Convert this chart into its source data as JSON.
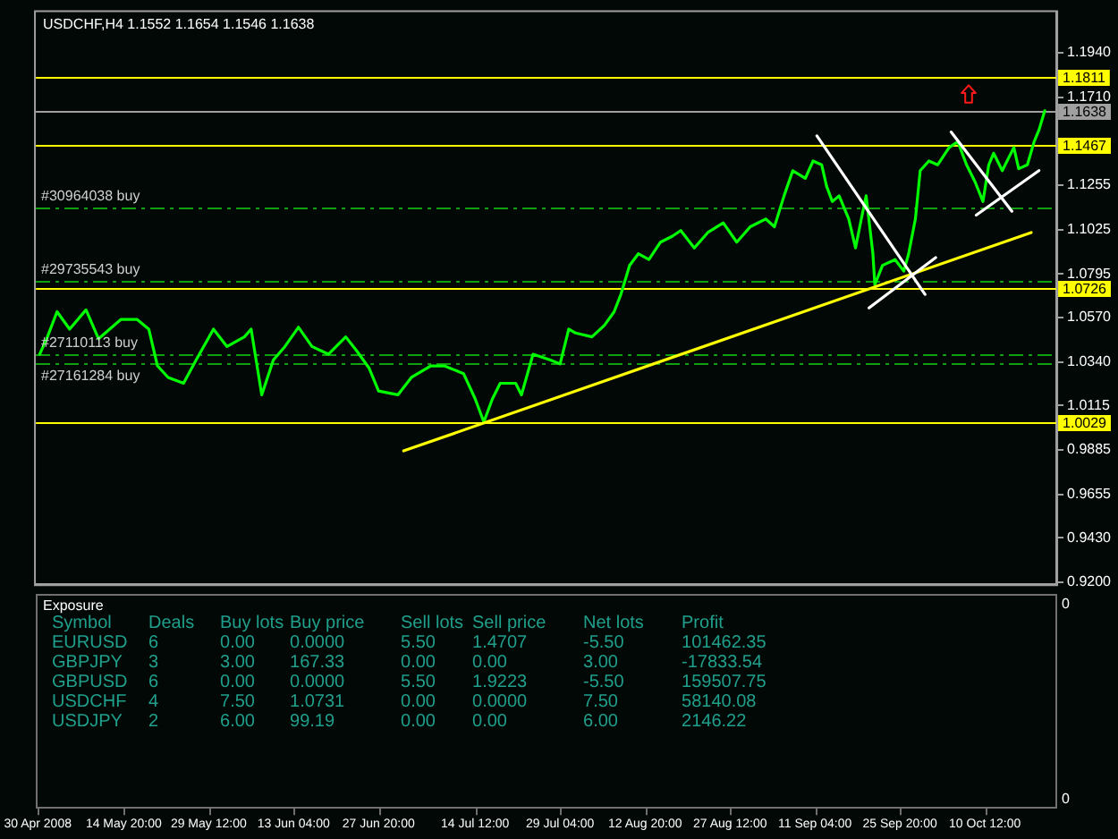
{
  "chart_data": [
    {
      "type": "line",
      "title": "USDCHF,H4 1.1552 1.1654 1.1546 1.1638",
      "x": [
        "2008-04-30T08:00",
        "2008-05-01T16:00",
        "2008-05-03T08:00",
        "2008-05-05T12:00",
        "2008-05-08T08:00",
        "2008-05-10T12:00",
        "2008-05-14T08:00",
        "2008-05-17T04:00",
        "2008-05-19T04:00",
        "2008-05-20T16:00",
        "2008-05-22T12:00",
        "2008-05-25T04:00",
        "2008-05-27T08:00",
        "2008-05-30T08:00",
        "2008-06-01T16:00",
        "2008-06-04T16:00",
        "2008-06-05T20:00",
        "2008-06-07T16:00",
        "2008-06-09T16:00",
        "2008-06-11T16:00",
        "2008-06-14T00:00",
        "2008-06-16T08:00",
        "2008-06-19T04:00",
        "2008-06-22T04:00",
        "2008-06-24T00:00",
        "2008-06-26T04:00",
        "2008-06-27T20:00",
        "2008-07-01T04:00",
        "2008-07-03T12:00",
        "2008-07-06T20:00",
        "2008-07-09T04:00",
        "2008-07-12T12:00",
        "2008-07-14T12:00",
        "2008-07-16T00:00",
        "2008-07-17T12:00",
        "2008-07-18T20:00",
        "2008-07-21T12:00",
        "2008-07-22T12:00",
        "2008-07-24T12:00",
        "2008-07-27T12:00",
        "2008-07-29T04:00",
        "2008-07-30T16:00",
        "2008-07-31T20:00",
        "2008-08-03T16:00",
        "2008-08-05T20:00",
        "2008-08-07T12:00",
        "2008-08-08T16:00",
        "2008-08-10T04:00",
        "2008-08-11T16:00",
        "2008-08-13T12:00",
        "2008-08-15T12:00",
        "2008-08-17T12:00",
        "2008-08-19T00:00",
        "2008-08-21T08:00",
        "2008-08-23T16:00",
        "2008-08-26T08:00",
        "2008-08-28T16:00",
        "2008-08-31T00:00",
        "2008-09-02T16:00",
        "2008-09-04T04:00",
        "2008-09-05T20:00",
        "2008-09-07T08:00",
        "2008-09-09T12:00",
        "2008-09-10T20:00",
        "2008-09-12T08:00",
        "2008-09-13T04:00",
        "2008-09-14T04:00",
        "2008-09-15T08:00",
        "2008-09-17T00:00",
        "2008-09-18T04:00",
        "2008-09-19T04:00",
        "2008-09-20T00:00",
        "2008-09-21T04:00",
        "2008-09-21T12:00",
        "2008-09-22T20:00",
        "2008-09-25T00:00",
        "2008-09-26T12:00",
        "2008-09-27T08:00",
        "2008-09-28T12:00",
        "2008-09-29T08:00",
        "2008-09-30T20:00",
        "2008-10-02T08:00",
        "2008-10-04T08:00",
        "2008-10-05T20:00",
        "2008-10-07T08:00",
        "2008-10-08T20:00",
        "2008-10-10T04:00",
        "2008-10-11T04:00",
        "2008-10-12T00:00",
        "2008-10-13T12:00",
        "2008-10-15T12:00",
        "2008-10-16T08:00",
        "2008-10-17T20:00",
        "2008-10-19T00:00",
        "2008-10-19T20:00",
        "2008-10-20T20:00"
      ],
      "series": [
        {
          "axis": "y2",
          "color": "#00ff00",
          "values": [
            1.038,
            1.047,
            1.06,
            1.051,
            1.061,
            1.046,
            1.056,
            1.056,
            1.051,
            1.032,
            1.026,
            1.023,
            1.035,
            1.051,
            1.042,
            1.047,
            1.051,
            1.017,
            1.035,
            1.042,
            1.052,
            1.042,
            1.038,
            1.047,
            1.04,
            1.031,
            1.019,
            1.017,
            1.026,
            1.032,
            1.032,
            1.028,
            1.015,
            1.003,
            1.015,
            1.023,
            1.023,
            1.017,
            1.038,
            1.035,
            1.033,
            1.051,
            1.049,
            1.047,
            1.053,
            1.06,
            1.069,
            1.084,
            1.09,
            1.087,
            1.096,
            1.099,
            1.102,
            1.093,
            1.101,
            1.106,
            1.096,
            1.104,
            1.108,
            1.104,
            1.12,
            1.133,
            1.129,
            1.138,
            1.136,
            1.125,
            1.117,
            1.12,
            1.108,
            1.093,
            1.108,
            1.12,
            1.09,
            1.074,
            1.084,
            1.087,
            1.081,
            1.09,
            1.108,
            1.133,
            1.138,
            1.136,
            1.145,
            1.148,
            1.136,
            1.127,
            1.117,
            1.136,
            1.142,
            1.133,
            1.145,
            1.134,
            1.136,
            1.148,
            1.154,
            1.164
          ]
        },
        {
          "type": "line",
          "axis": "y2",
          "color": "#ffff00",
          "x": [
            "2008-07-02T04:00",
            "2008-10-18T12:00"
          ],
          "values": [
            0.988,
            1.101
          ]
        },
        {
          "type": "line",
          "axis": "y2",
          "color": "#ffffff",
          "x": [
            "2008-09-11T12:00",
            "2008-09-30T04:00"
          ],
          "values": [
            1.151,
            1.069
          ]
        },
        {
          "type": "line",
          "axis": "y2",
          "color": "#ffffff",
          "x": [
            "2008-09-20T12:00",
            "2008-10-02T00:00"
          ],
          "values": [
            1.062,
            1.088
          ]
        },
        {
          "type": "line",
          "axis": "y2",
          "color": "#ffffff",
          "x": [
            "2008-10-04T16:00",
            "2008-10-15T04:00"
          ],
          "values": [
            1.153,
            1.112
          ]
        },
        {
          "type": "line",
          "axis": "y2",
          "color": "#ffffff",
          "x": [
            "2008-10-09T00:00",
            "2008-10-19T20:00"
          ],
          "values": [
            1.11,
            1.133
          ]
        }
      ],
      "xlim": [
        "2008-04-29T16:00",
        "2008-10-22T20:00"
      ],
      "xticks": [
        {
          "value": "2008-04-30",
          "label": "30 Apr 2008"
        },
        {
          "value": "2008-05-14T20:00",
          "label": "14 May 20:00"
        },
        {
          "value": "2008-05-29T12:00",
          "label": "29 May 12:00"
        },
        {
          "value": "2008-06-13T04:00",
          "label": "13 Jun 04:00"
        },
        {
          "value": "2008-06-27T20:00",
          "label": "27 Jun 20:00"
        },
        {
          "value": "2008-07-14T12:00",
          "label": "14 Jul 12:00"
        },
        {
          "value": "2008-07-29T04:00",
          "label": "29 Jul 04:00"
        },
        {
          "value": "2008-08-12T20:00",
          "label": "12 Aug 20:00"
        },
        {
          "value": "2008-08-27T12:00",
          "label": "27 Aug 12:00"
        },
        {
          "value": "2008-09-11T04:00",
          "label": "11 Sep 04:00"
        },
        {
          "value": "2008-09-25T20:00",
          "label": "25 Sep 20:00"
        },
        {
          "value": "2008-10-10T12:00",
          "label": "10 Oct 12:00"
        }
      ],
      "y2lim": [
        0.919,
        1.215
      ],
      "y2ticks": [
        {
          "value": 0.92,
          "label": "0.9200"
        },
        {
          "value": 0.943,
          "label": "0.9430"
        },
        {
          "value": 0.9655,
          "label": "0.9655"
        },
        {
          "value": 0.9885,
          "label": "0.9885"
        },
        {
          "value": 1.0115,
          "label": "1.0115"
        },
        {
          "value": 1.034,
          "label": "1.0340"
        },
        {
          "value": 1.057,
          "label": "1.0570"
        },
        {
          "value": 1.0795,
          "label": "1.0795"
        },
        {
          "value": 1.1025,
          "label": "1.1025"
        },
        {
          "value": 1.1255,
          "label": "1.1255"
        },
        {
          "value": 1.171,
          "label": "1.1710"
        },
        {
          "value": 1.194,
          "label": "1.1940"
        }
      ],
      "ref_lines": [
        {
          "axis": "y2",
          "value": 1.1811,
          "label": "1.1811",
          "color": "#ffff00"
        },
        {
          "axis": "y2",
          "value": 1.1638,
          "label": "1.1638",
          "color": "#a0a0a0"
        },
        {
          "axis": "y2",
          "value": 1.1467,
          "label": "1.1467",
          "color": "#ffff00"
        },
        {
          "axis": "y2",
          "value": 1.114,
          "label": "#30964038 buy",
          "color": "#10a010",
          "line_style": "dashed"
        },
        {
          "axis": "y2",
          "value": 1.076,
          "label": "#29735543 buy",
          "color": "#10a010",
          "line_style": "dashed"
        },
        {
          "axis": "y2",
          "value": 1.0726,
          "label": "1.0726",
          "color": "#ffff00"
        },
        {
          "axis": "y2",
          "value": 1.038,
          "label": "#27110113 buy",
          "color": "#10a010",
          "line_style": "dashed"
        },
        {
          "axis": "y2",
          "value": 1.033,
          "label": "#27161284 buy",
          "color": "#10a010",
          "line_style": "dashed"
        },
        {
          "axis": "y2",
          "value": 1.0029,
          "label": "1.0029",
          "color": "#ffff00"
        }
      ]
    },
    {
      "type": "other",
      "title": "Exposure",
      "ylabel": "Symbol",
      "categories": [
        "Deals",
        "Buy lots",
        "Buy price",
        "Sell lots",
        "Sell price",
        "Net lots",
        "Profit"
      ],
      "y_categories": [
        "EURUSD",
        "GBPJPY",
        "GBPUSD",
        "USDCHF",
        "USDJPY"
      ],
      "cell_labels": [
        [
          "6",
          "0.00",
          "0.0000",
          "5.50",
          "1.4707",
          "-5.50",
          "101462.35"
        ],
        [
          "3",
          "3.00",
          "167.33",
          "0.00",
          "0.00",
          "3.00",
          "-17833.54"
        ],
        [
          "6",
          "0.00",
          "0.0000",
          "5.50",
          "1.9223",
          "-5.50",
          "159507.75"
        ],
        [
          "4",
          "7.50",
          "1.0731",
          "0.00",
          "0.0000",
          "7.50",
          "58140.08"
        ],
        [
          "2",
          "6.00",
          "99.19",
          "0.00",
          "0.00",
          "6.00",
          "2146.22"
        ]
      ],
      "annotations": [
        "0",
        "0"
      ]
    }
  ]
}
